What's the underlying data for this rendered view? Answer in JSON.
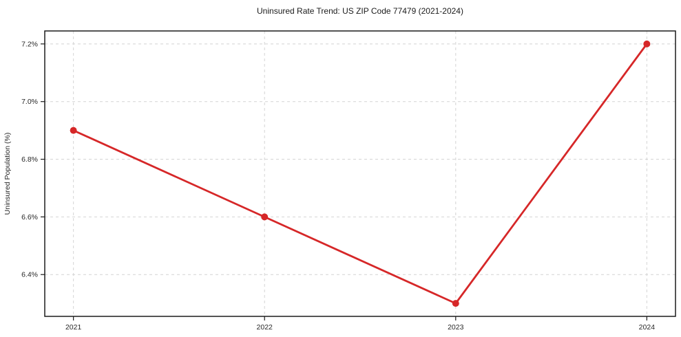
{
  "chart_data": {
    "type": "line",
    "title": "Uninsured Rate Trend: US ZIP Code 77479 (2021-2024)",
    "xlabel": "",
    "ylabel": "Uninsured Population (%)",
    "x": [
      2021,
      2022,
      2023,
      2024
    ],
    "x_tick_labels": [
      "2021",
      "2022",
      "2023",
      "2024"
    ],
    "values": [
      6.9,
      6.6,
      6.3,
      7.2
    ],
    "y_ticks": [
      6.4,
      6.6,
      6.8,
      7.0,
      7.2
    ],
    "y_tick_labels": [
      "6.4%",
      "6.6%",
      "6.8%",
      "7.0%",
      "7.2%"
    ],
    "xlim": [
      2020.85,
      2024.15
    ],
    "ylim": [
      6.255,
      7.245
    ],
    "grid": "dashed",
    "legend": "none",
    "marker": "circle",
    "line_color": "#d62728",
    "grid_color": "#d4d4d4",
    "frame_color": "#1a1a1a",
    "text_color": "#262626",
    "background": "#ffffff"
  }
}
